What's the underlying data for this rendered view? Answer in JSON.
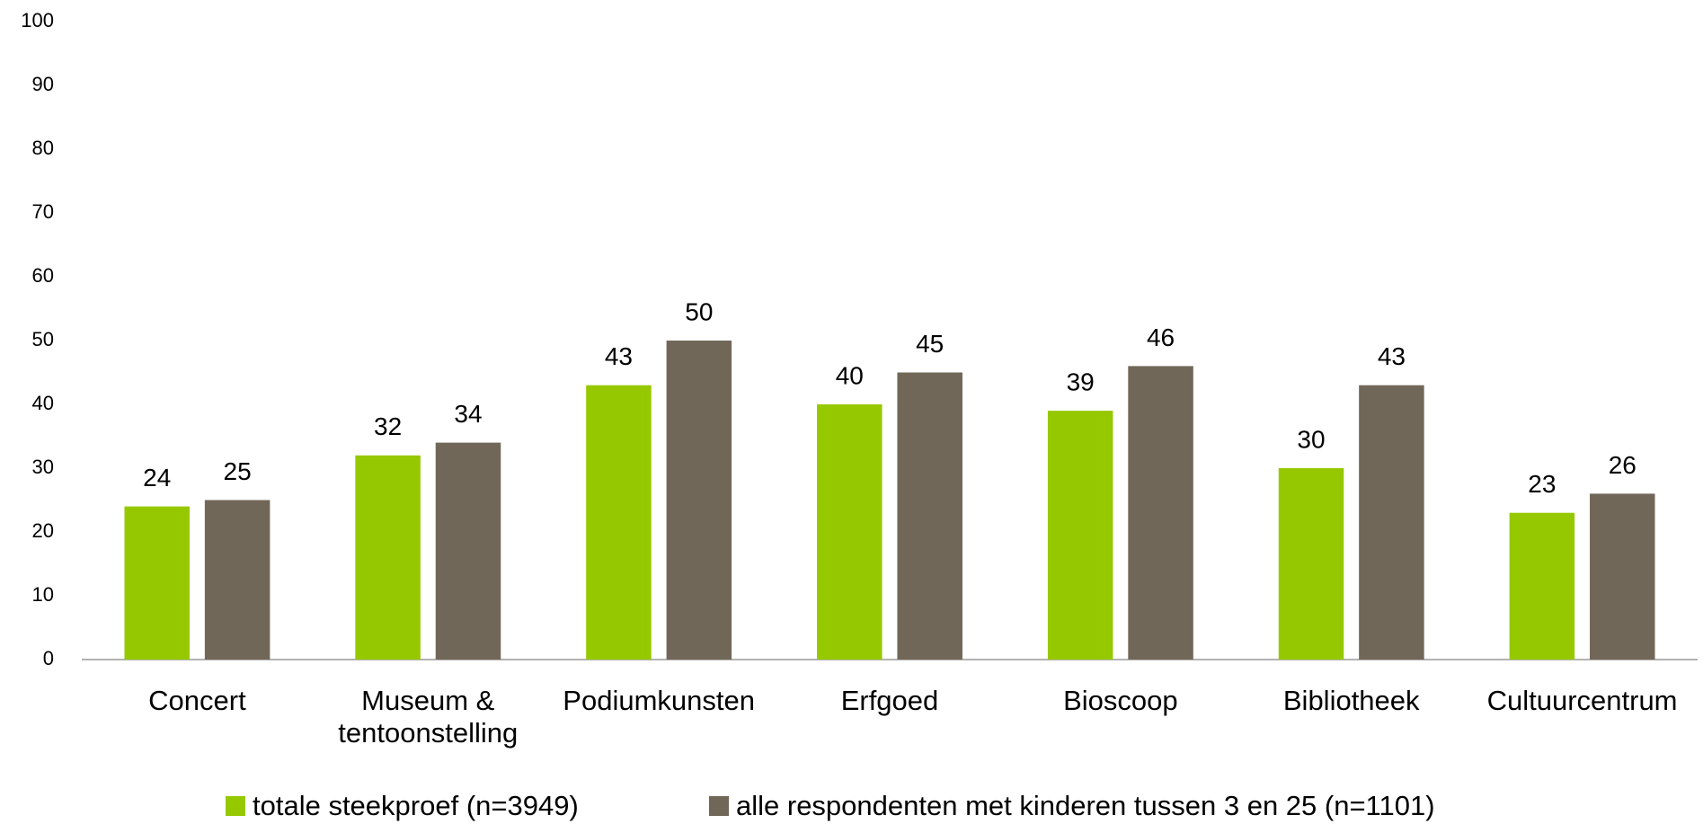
{
  "chart_data": {
    "type": "bar",
    "categories": [
      "Concert",
      "Museum & tentoonstelling",
      "Podiumkunsten",
      "Erfgoed",
      "Bioscoop",
      "Bibliotheek",
      "Cultuurcentrum"
    ],
    "series": [
      {
        "name": "totale steekproef (n=3949)",
        "color": "#96c800",
        "values": [
          24,
          32,
          43,
          40,
          39,
          30,
          23
        ]
      },
      {
        "name": "alle respondenten met kinderen tussen 3 en 25 (n=1101)",
        "color": "#716758",
        "values": [
          25,
          34,
          50,
          45,
          46,
          43,
          26
        ]
      }
    ],
    "ylim": [
      0,
      100
    ],
    "yticks": [
      0,
      10,
      20,
      30,
      40,
      50,
      60,
      70,
      80,
      90,
      100
    ],
    "grid": false,
    "legend": "bottom"
  }
}
